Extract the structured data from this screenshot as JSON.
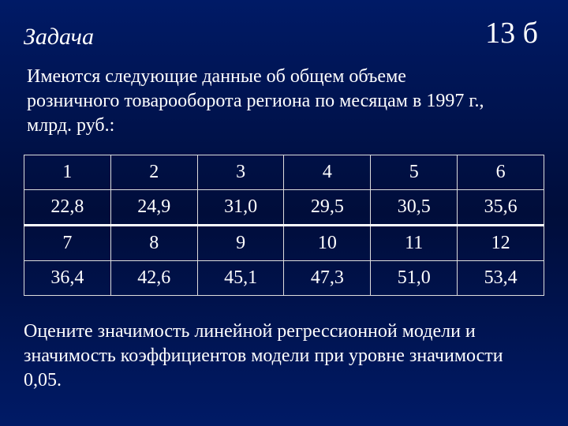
{
  "header": {
    "title": "Задача",
    "points": "13 б"
  },
  "intro": "Имеются следующие данные об общем объеме  розничного товарооборота  региона по месяцам в 1997 г., млрд. руб.:",
  "table": {
    "type": "table",
    "columns_count": 6,
    "border_color": "#dddddd",
    "separator_color": "#ffffff",
    "text_color": "#ffffff",
    "fontsize": 24,
    "rows": [
      [
        "1",
        "2",
        "3",
        "4",
        "5",
        "6"
      ],
      [
        "22,8",
        "24,9",
        "31,0",
        "29,5",
        "30,5",
        "35,6"
      ],
      [
        "7",
        "8",
        "9",
        "10",
        "11",
        "12"
      ],
      [
        "36,4",
        "42,6",
        "45,1",
        "47,3",
        "51,0",
        "53,4"
      ]
    ]
  },
  "question": "Оцените  значимость линейной регрессионной модели  и значимость коэффициентов модели при уровне значимости 0,05.",
  "styling": {
    "background_gradient_top": "#001a66",
    "background_gradient_mid": "#000d3a",
    "font_family": "Times New Roman",
    "title_fontsize": 30,
    "title_style": "italic",
    "points_fontsize": 38,
    "body_fontsize": 24,
    "text_color": "#ffffff"
  }
}
